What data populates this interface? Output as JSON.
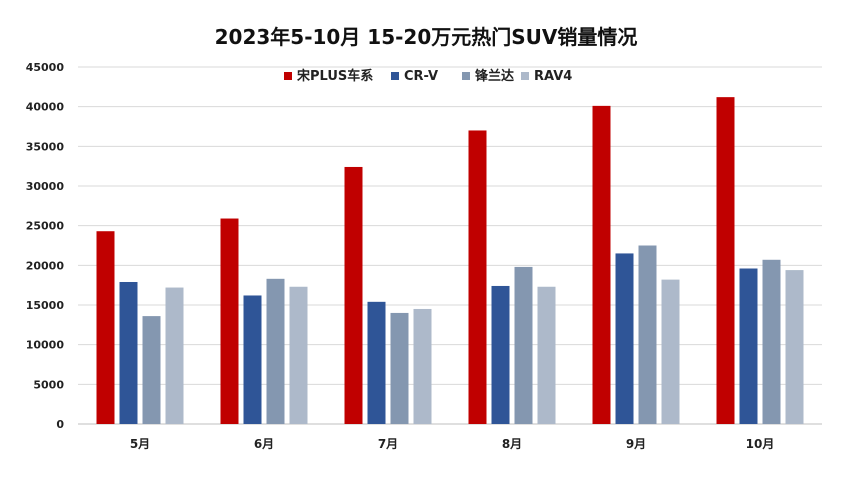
{
  "chart_data": {
    "type": "bar",
    "title": "2023年5-10月 15-20万元热门SUV销量情况",
    "xlabel": "",
    "ylabel": "",
    "categories": [
      "5月",
      "6月",
      "7月",
      "8月",
      "9月",
      "10月"
    ],
    "ylim": [
      0,
      45000
    ],
    "yticks": [
      0,
      5000,
      10000,
      15000,
      20000,
      25000,
      30000,
      35000,
      40000,
      45000
    ],
    "grid": true,
    "legend": "top-center",
    "series": [
      {
        "name": "宋PLUS车系",
        "color": "#C00000",
        "values": [
          24300,
          25900,
          32400,
          37000,
          40100,
          41200
        ]
      },
      {
        "name": "CR-V",
        "color": "#2F5597",
        "values": [
          17900,
          16200,
          15400,
          17400,
          21500,
          19600
        ]
      },
      {
        "name": "锋兰达",
        "color": "#8497B0",
        "values": [
          13600,
          18300,
          14000,
          19800,
          22500,
          20700
        ]
      },
      {
        "name": "RAV4",
        "color": "#ADB9CA",
        "values": [
          17200,
          17300,
          14500,
          17300,
          18200,
          19400
        ]
      }
    ]
  }
}
